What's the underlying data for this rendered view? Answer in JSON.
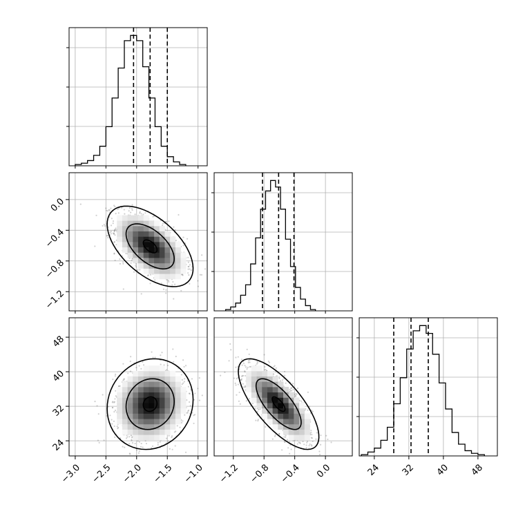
{
  "chart_data": {
    "type": "corner",
    "parameters": [
      {
        "range": [
          -3.1,
          -0.85
        ],
        "ticks": [
          "-3.0",
          "-2.5",
          "-2.0",
          "-1.5",
          "-1.0"
        ],
        "tick_values": [
          -3.0,
          -2.5,
          -2.0,
          -1.5,
          -1.0
        ],
        "quantiles": [
          -2.05,
          -1.78,
          -1.5
        ]
      },
      {
        "range": [
          -1.45,
          0.35
        ],
        "ticks": [
          "-1.2",
          "-0.8",
          "-0.4",
          "0.0"
        ],
        "tick_values": [
          -1.2,
          -0.8,
          -0.4,
          0.0
        ],
        "quantiles": [
          -0.82,
          -0.61,
          -0.41
        ]
      },
      {
        "range": [
          20.5,
          52.5
        ],
        "ticks": [
          "24",
          "32",
          "40",
          "48"
        ],
        "tick_values": [
          24,
          32,
          40,
          48
        ],
        "quantiles": [
          28.5,
          32.5,
          36.5
        ]
      }
    ],
    "histograms": [
      {
        "param": 0,
        "bin_start": -3.0,
        "bin_width": 0.1,
        "counts": [
          1,
          2,
          4,
          8,
          15,
          30,
          52,
          75,
          96,
          100,
          96,
          76,
          52,
          30,
          15,
          7,
          3,
          1
        ]
      },
      {
        "param": 1,
        "bin_start": -1.3,
        "bin_width": 0.065,
        "counts": [
          1,
          3,
          6,
          12,
          20,
          36,
          56,
          78,
          92,
          100,
          95,
          78,
          55,
          34,
          18,
          9,
          4,
          1
        ]
      },
      {
        "param": 2,
        "bin_start": 21,
        "bin_width": 1.5,
        "counts": [
          1,
          3,
          6,
          12,
          22,
          40,
          60,
          82,
          96,
          100,
          94,
          78,
          56,
          36,
          18,
          9,
          4,
          2,
          1
        ]
      }
    ],
    "pairs": [
      {
        "x": 0,
        "y": 1,
        "center": [
          -1.78,
          -0.61
        ],
        "sd": [
          0.28,
          0.21
        ],
        "corr": -0.55
      },
      {
        "x": 0,
        "y": 2,
        "center": [
          -1.78,
          32.5
        ],
        "sd": [
          0.28,
          4.2
        ],
        "corr": 0.1
      },
      {
        "x": 1,
        "y": 2,
        "center": [
          -0.61,
          32.5
        ],
        "sd": [
          0.21,
          4.2
        ],
        "corr": -0.72
      }
    ],
    "grid": true
  }
}
